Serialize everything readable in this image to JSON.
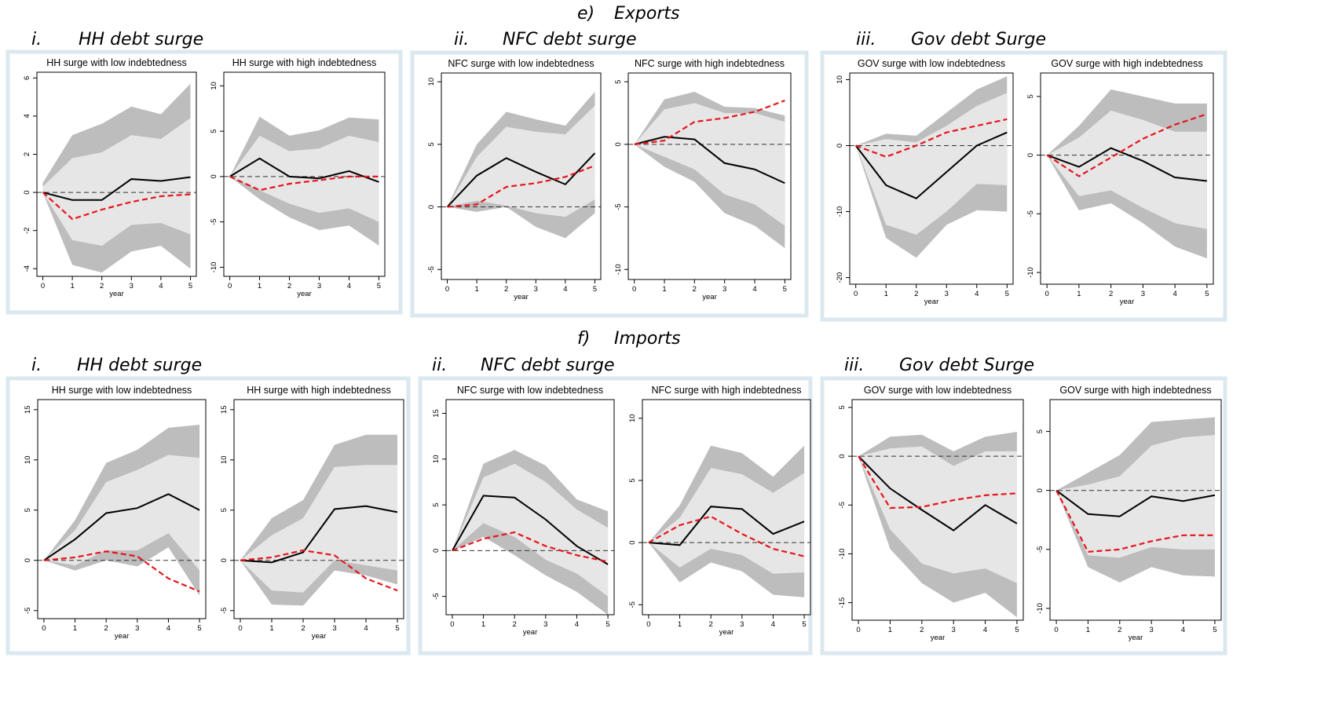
{
  "sections": [
    {
      "label": "e)",
      "title": "Exports",
      "groups": [
        {
          "label": "i.",
          "title": "HH debt surge"
        },
        {
          "label": "ii.",
          "title": "NFC debt surge"
        },
        {
          "label": "iii.",
          "title": "Gov debt Surge"
        }
      ]
    },
    {
      "label": "f)",
      "title": "Imports",
      "groups": [
        {
          "label": "i.",
          "title": "HH debt surge"
        },
        {
          "label": "ii.",
          "title": "NFC debt surge"
        },
        {
          "label": "iii.",
          "title": "Gov debt Surge"
        }
      ]
    }
  ],
  "chart_data": [
    {
      "type": "line",
      "title": "HH surge with low indebtedness",
      "xlabel": "year",
      "x": [
        0,
        1,
        2,
        3,
        4,
        5
      ],
      "xlim": [
        -0.2,
        5.2
      ],
      "xticks": [
        0,
        1,
        2,
        3,
        4,
        5
      ],
      "ylim": [
        -4.4,
        6.3
      ],
      "yticks": [
        -4,
        -2,
        0,
        2,
        4,
        6
      ],
      "hline": 0,
      "bands": [
        {
          "color": "#bdbdbd",
          "lower": [
            0,
            -3.8,
            -4.2,
            -3.1,
            -2.8,
            -4.0
          ],
          "upper": [
            0.5,
            3.0,
            3.6,
            4.5,
            4.1,
            5.7
          ]
        },
        {
          "color": "#e6e6e6",
          "lower": [
            0,
            -2.5,
            -2.8,
            -1.7,
            -1.6,
            -2.2
          ],
          "upper": [
            0.3,
            1.8,
            2.1,
            3.0,
            2.8,
            3.9
          ]
        }
      ],
      "series": [
        {
          "color": "#000000",
          "style": "solid",
          "values": [
            0,
            -0.4,
            -0.4,
            0.7,
            0.6,
            0.8
          ]
        },
        {
          "color": "#e8141b",
          "style": "dashed",
          "values": [
            0,
            -1.4,
            -0.9,
            -0.5,
            -0.2,
            -0.1
          ]
        }
      ]
    },
    {
      "type": "line",
      "title": "HH surge with high indebtedness",
      "xlabel": "year",
      "x": [
        0,
        1,
        2,
        3,
        4,
        5
      ],
      "xlim": [
        -0.2,
        5.2
      ],
      "xticks": [
        0,
        1,
        2,
        3,
        4,
        5
      ],
      "ylim": [
        -11,
        11.5
      ],
      "yticks": [
        -10,
        -5,
        0,
        5,
        10
      ],
      "hline": 0,
      "bands": [
        {
          "color": "#bdbdbd",
          "lower": [
            0,
            -2.5,
            -4.5,
            -5.9,
            -5.4,
            -7.6
          ],
          "upper": [
            0,
            6.6,
            4.5,
            5.1,
            6.5,
            6.3
          ]
        },
        {
          "color": "#e6e6e6",
          "lower": [
            0,
            -1.5,
            -3,
            -4,
            -3.5,
            -5
          ],
          "upper": [
            0,
            4.5,
            2.8,
            3.1,
            4.5,
            3.8
          ]
        }
      ],
      "series": [
        {
          "color": "#000000",
          "style": "solid",
          "values": [
            0,
            2.0,
            0,
            -0.2,
            0.6,
            -0.6
          ]
        },
        {
          "color": "#e8141b",
          "style": "dashed",
          "values": [
            0,
            -1.5,
            -0.8,
            -0.4,
            0,
            0
          ]
        }
      ]
    },
    {
      "type": "line",
      "title": "NFC surge with low indebtedness",
      "xlabel": "year",
      "x": [
        0,
        1,
        2,
        3,
        4,
        5
      ],
      "xlim": [
        -0.2,
        5.2
      ],
      "xticks": [
        0,
        1,
        2,
        3,
        4,
        5
      ],
      "ylim": [
        -5.8,
        10.7
      ],
      "yticks": [
        -5,
        0,
        5,
        10
      ],
      "hline": 0,
      "bands": [
        {
          "color": "#bdbdbd",
          "lower": [
            0,
            -0.4,
            0,
            -1.6,
            -2.5,
            -0.5
          ],
          "upper": [
            0,
            5,
            7.6,
            7,
            6.5,
            9.2
          ]
        },
        {
          "color": "#e6e6e6",
          "lower": [
            0,
            0.5,
            0.1,
            -0.5,
            -0.8,
            0.6
          ],
          "upper": [
            0,
            4,
            6.4,
            6,
            5.8,
            8.1
          ]
        }
      ],
      "series": [
        {
          "color": "#000000",
          "style": "solid",
          "values": [
            0,
            2.5,
            3.9,
            2.8,
            1.8,
            4.3
          ]
        },
        {
          "color": "#e8141b",
          "style": "dashed",
          "values": [
            0,
            0.2,
            1.6,
            1.9,
            2.4,
            3.3
          ]
        }
      ]
    },
    {
      "type": "line",
      "title": "NFC surge with high indebtedness",
      "xlabel": "year",
      "x": [
        0,
        1,
        2,
        3,
        4,
        5
      ],
      "xlim": [
        -0.2,
        5.2
      ],
      "xticks": [
        0,
        1,
        2,
        3,
        4,
        5
      ],
      "ylim": [
        -10.8,
        5.7
      ],
      "yticks": [
        -10,
        -5,
        0,
        5
      ],
      "hline": 0,
      "bands": [
        {
          "color": "#bdbdbd",
          "lower": [
            0,
            -1.8,
            -3,
            -5.5,
            -6.5,
            -8.3
          ],
          "upper": [
            0,
            3.6,
            4.2,
            3,
            2.9,
            2.3
          ]
        },
        {
          "color": "#e6e6e6",
          "lower": [
            0,
            -1,
            -2,
            -4,
            -4.8,
            -6.5
          ],
          "upper": [
            0,
            2.8,
            3.3,
            2.5,
            2.5,
            1.8
          ]
        }
      ],
      "series": [
        {
          "color": "#000000",
          "style": "solid",
          "values": [
            0,
            0.6,
            0.4,
            -1.5,
            -2,
            -3.1
          ]
        },
        {
          "color": "#e8141b",
          "style": "dashed",
          "values": [
            0,
            0.3,
            1.8,
            2.1,
            2.6,
            3.5
          ]
        }
      ]
    },
    {
      "type": "line",
      "title": "GOV surge with low indebtedness",
      "xlabel": "year",
      "x": [
        0,
        1,
        2,
        3,
        4,
        5
      ],
      "xlim": [
        -0.2,
        5.2
      ],
      "xticks": [
        0,
        1,
        2,
        3,
        4,
        5
      ],
      "ylim": [
        -21,
        11
      ],
      "yticks": [
        -20,
        -10,
        0,
        10
      ],
      "hline": 0,
      "bands": [
        {
          "color": "#bdbdbd",
          "lower": [
            0,
            -14,
            -17,
            -12,
            -9.8,
            -10
          ],
          "upper": [
            0,
            1.8,
            1.5,
            5,
            8.5,
            10.5
          ]
        },
        {
          "color": "#e6e6e6",
          "lower": [
            0,
            -12,
            -13.5,
            -10,
            -5.8,
            -6
          ],
          "upper": [
            0,
            1,
            0.5,
            3,
            6,
            8
          ]
        }
      ],
      "series": [
        {
          "color": "#000000",
          "style": "solid",
          "values": [
            0,
            -6,
            -8,
            -4,
            0,
            2
          ]
        },
        {
          "color": "#e8141b",
          "style": "dashed",
          "values": [
            0,
            -1.7,
            0,
            2,
            3,
            4
          ]
        }
      ]
    },
    {
      "type": "line",
      "title": "GOV surge with high indebtedness",
      "xlabel": "year",
      "x": [
        0,
        1,
        2,
        3,
        4,
        5
      ],
      "xlim": [
        -0.2,
        5.2
      ],
      "xticks": [
        0,
        1,
        2,
        3,
        4,
        5
      ],
      "ylim": [
        -11,
        7
      ],
      "yticks": [
        -10,
        -5,
        0,
        5
      ],
      "hline": 0,
      "bands": [
        {
          "color": "#bdbdbd",
          "lower": [
            0,
            -4.7,
            -4.1,
            -5.8,
            -7.8,
            -8.8
          ],
          "upper": [
            0,
            2.5,
            5.6,
            5,
            4.4,
            4.4
          ]
        },
        {
          "color": "#e6e6e6",
          "lower": [
            0,
            -3.5,
            -3,
            -4.5,
            -5.8,
            -6.3
          ],
          "upper": [
            0,
            1.5,
            3.8,
            3,
            2,
            2
          ]
        }
      ],
      "series": [
        {
          "color": "#000000",
          "style": "solid",
          "values": [
            0,
            -1,
            0.6,
            -0.5,
            -1.9,
            -2.2
          ]
        },
        {
          "color": "#e8141b",
          "style": "dashed",
          "values": [
            0,
            -1.8,
            -0.2,
            1.4,
            2.6,
            3.5
          ]
        }
      ]
    },
    {
      "type": "line",
      "title": "HH surge with low indebtedness",
      "xlabel": "year",
      "x": [
        0,
        1,
        2,
        3,
        4,
        5
      ],
      "xlim": [
        -0.2,
        5.2
      ],
      "xticks": [
        0,
        1,
        2,
        3,
        4,
        5
      ],
      "ylim": [
        -5.8,
        16
      ],
      "yticks": [
        -5,
        0,
        5,
        10,
        15
      ],
      "hline": 0,
      "bands": [
        {
          "color": "#bdbdbd",
          "lower": [
            0,
            -1,
            0,
            -0.6,
            1.3,
            -3.5
          ],
          "upper": [
            0,
            4,
            9.7,
            11,
            13.2,
            13.5
          ]
        },
        {
          "color": "#e6e6e6",
          "lower": [
            0,
            -0.5,
            1,
            1,
            2.7,
            -1
          ],
          "upper": [
            0,
            3,
            7.8,
            9,
            10.5,
            10.2
          ]
        }
      ],
      "series": [
        {
          "color": "#000000",
          "style": "solid",
          "values": [
            0,
            2.1,
            4.7,
            5.2,
            6.6,
            5
          ]
        },
        {
          "color": "#e8141b",
          "style": "dashed",
          "values": [
            0,
            0.3,
            0.9,
            0.4,
            -1.8,
            -3.1
          ]
        }
      ]
    },
    {
      "type": "line",
      "title": "HH surge with high indebtedness",
      "xlabel": "year",
      "x": [
        0,
        1,
        2,
        3,
        4,
        5
      ],
      "xlim": [
        -0.2,
        5.2
      ],
      "xticks": [
        0,
        1,
        2,
        3,
        4,
        5
      ],
      "ylim": [
        -5.8,
        16
      ],
      "yticks": [
        -5,
        0,
        5,
        10,
        15
      ],
      "hline": 0,
      "bands": [
        {
          "color": "#bdbdbd",
          "lower": [
            0,
            -4.4,
            -4.5,
            -1,
            -1.5,
            -2.4
          ],
          "upper": [
            0,
            4.2,
            6,
            11.5,
            12.5,
            12.5
          ]
        },
        {
          "color": "#e6e6e6",
          "lower": [
            0,
            -3,
            -3.2,
            0,
            -0.5,
            -1
          ],
          "upper": [
            0,
            2.5,
            4.2,
            9.3,
            9.5,
            9.5
          ]
        }
      ],
      "series": [
        {
          "color": "#000000",
          "style": "solid",
          "values": [
            0,
            -0.2,
            0.8,
            5.1,
            5.4,
            4.8
          ]
        },
        {
          "color": "#e8141b",
          "style": "dashed",
          "values": [
            0,
            0.3,
            1,
            0.5,
            -1.8,
            -3
          ]
        }
      ]
    },
    {
      "type": "line",
      "title": "NFC surge with low indebtedness",
      "xlabel": "year",
      "x": [
        0,
        1,
        2,
        3,
        4,
        5
      ],
      "xlim": [
        -0.2,
        5.2
      ],
      "xticks": [
        0,
        1,
        2,
        3,
        4,
        5
      ],
      "ylim": [
        -7,
        16.5
      ],
      "yticks": [
        -5,
        0,
        5,
        10,
        15
      ],
      "hline": 0,
      "bands": [
        {
          "color": "#bdbdbd",
          "lower": [
            0,
            1.5,
            -0.5,
            -2.7,
            -4.5,
            -7
          ],
          "upper": [
            0,
            9.5,
            11,
            9.3,
            5.6,
            4.3
          ]
        },
        {
          "color": "#e6e6e6",
          "lower": [
            0,
            3,
            1.5,
            -1,
            -2.5,
            -5
          ],
          "upper": [
            0,
            8,
            9.5,
            7.5,
            4.5,
            2.5
          ]
        }
      ],
      "series": [
        {
          "color": "#000000",
          "style": "solid",
          "values": [
            0,
            6,
            5.8,
            3.4,
            0.5,
            -1.5
          ]
        },
        {
          "color": "#e8141b",
          "style": "dashed",
          "values": [
            0,
            1.3,
            2,
            0.5,
            -0.5,
            -1.2
          ]
        }
      ]
    },
    {
      "type": "line",
      "title": "NFC surge with high indebtedness",
      "xlabel": "year",
      "x": [
        0,
        1,
        2,
        3,
        4,
        5
      ],
      "xlim": [
        -0.2,
        5.2
      ],
      "xticks": [
        0,
        1,
        2,
        3,
        4,
        5
      ],
      "ylim": [
        -5.8,
        11.5
      ],
      "yticks": [
        -5,
        0,
        5,
        10
      ],
      "hline": 0,
      "bands": [
        {
          "color": "#bdbdbd",
          "lower": [
            0,
            -3.2,
            -1.6,
            -2.3,
            -4.2,
            -4.4
          ],
          "upper": [
            0,
            3,
            7.8,
            7.2,
            5.3,
            7.8
          ]
        },
        {
          "color": "#e6e6e6",
          "lower": [
            0,
            -2,
            -0.5,
            -1,
            -2.5,
            -2.4
          ],
          "upper": [
            0,
            2,
            6,
            5.5,
            4,
            5.6
          ]
        }
      ],
      "series": [
        {
          "color": "#000000",
          "style": "solid",
          "values": [
            0,
            -0.2,
            2.9,
            2.7,
            0.7,
            1.7
          ]
        },
        {
          "color": "#e8141b",
          "style": "dashed",
          "values": [
            0,
            1.4,
            2.1,
            0.7,
            -0.5,
            -1.1
          ]
        }
      ]
    },
    {
      "type": "line",
      "title": "GOV surge with low indebtedness",
      "xlabel": "year",
      "x": [
        0,
        1,
        2,
        3,
        4,
        5
      ],
      "xlim": [
        -0.2,
        5.2
      ],
      "xticks": [
        0,
        1,
        2,
        3,
        4,
        5
      ],
      "ylim": [
        -16.8,
        5.8
      ],
      "yticks": [
        -15,
        -10,
        -5,
        0,
        5
      ],
      "hline": 0,
      "bands": [
        {
          "color": "#bdbdbd",
          "lower": [
            0,
            -9.5,
            -13,
            -15,
            -14,
            -16.5
          ],
          "upper": [
            0,
            2,
            2.2,
            0.5,
            2,
            2.5
          ]
        },
        {
          "color": "#e6e6e6",
          "lower": [
            0,
            -7.5,
            -11,
            -12,
            -11.5,
            -13
          ],
          "upper": [
            0,
            0.8,
            1,
            -1,
            0.5,
            0.5
          ]
        }
      ],
      "series": [
        {
          "color": "#000000",
          "style": "solid",
          "values": [
            0,
            -3.3,
            -5.5,
            -7.6,
            -5,
            -6.9
          ]
        },
        {
          "color": "#e8141b",
          "style": "dashed",
          "values": [
            0,
            -5.3,
            -5.2,
            -4.5,
            -4,
            -3.8
          ]
        }
      ]
    },
    {
      "type": "line",
      "title": "GOV surge with high indebtedness",
      "xlabel": "year",
      "x": [
        0,
        1,
        2,
        3,
        4,
        5
      ],
      "xlim": [
        -0.2,
        5.2
      ],
      "xticks": [
        0,
        1,
        2,
        3,
        4,
        5
      ],
      "ylim": [
        -11,
        7.7
      ],
      "yticks": [
        -10,
        -5,
        0,
        5
      ],
      "hline": 0,
      "bands": [
        {
          "color": "#bdbdbd",
          "lower": [
            0,
            -6.5,
            -7.8,
            -6.5,
            -7.2,
            -7.3
          ],
          "upper": [
            0,
            1.5,
            3,
            5.8,
            6,
            6.2
          ]
        },
        {
          "color": "#e6e6e6",
          "lower": [
            0,
            -5.5,
            -5.7,
            -4.8,
            -5,
            -5
          ],
          "upper": [
            0,
            0.5,
            1.2,
            3.8,
            4.5,
            4.7
          ]
        }
      ],
      "series": [
        {
          "color": "#000000",
          "style": "solid",
          "values": [
            0,
            -2,
            -2.2,
            -0.5,
            -0.9,
            -0.4
          ]
        },
        {
          "color": "#e8141b",
          "style": "dashed",
          "values": [
            0,
            -5.2,
            -5,
            -4.3,
            -3.8,
            -3.8
          ]
        }
      ]
    }
  ]
}
